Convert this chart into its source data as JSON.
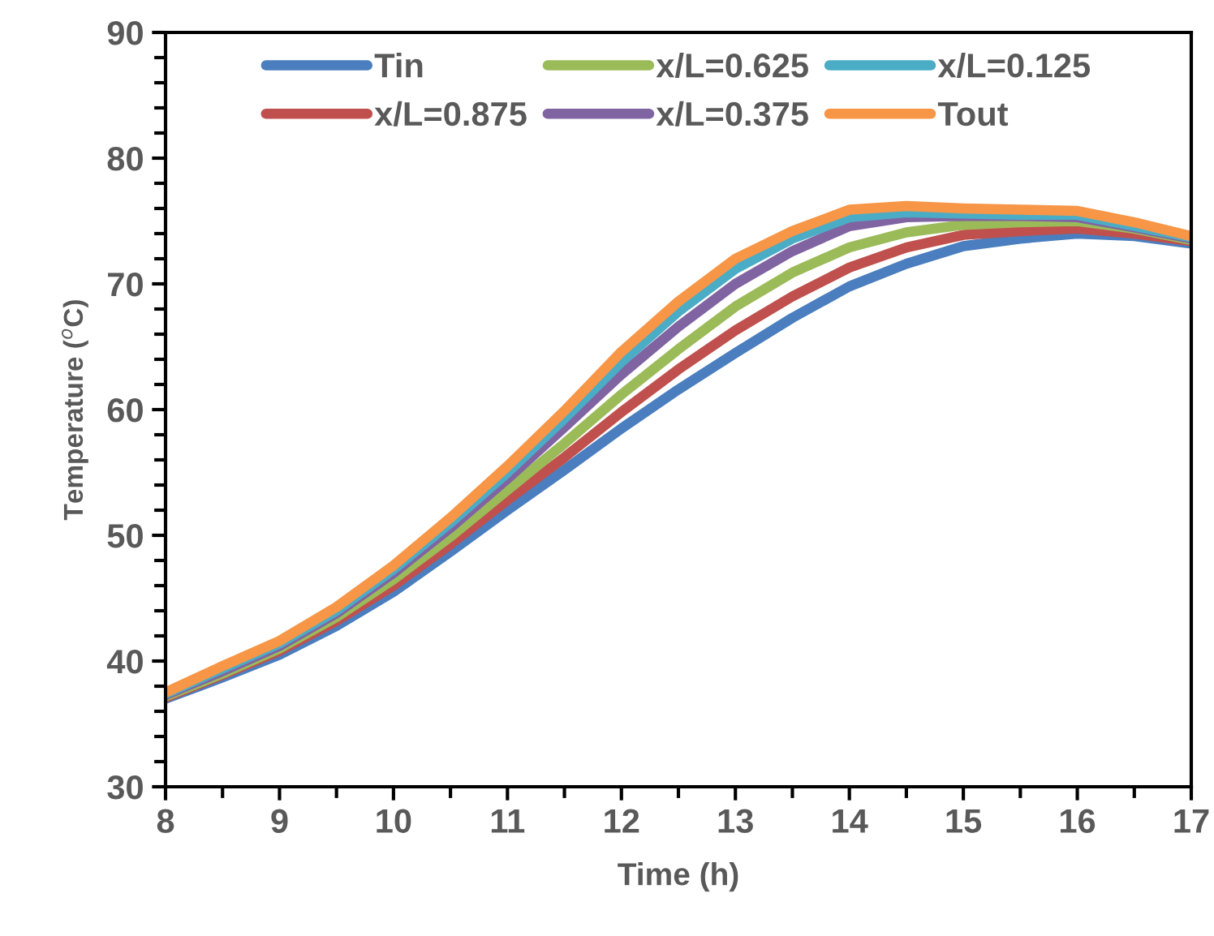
{
  "chart_data": {
    "type": "line",
    "xlabel": "Time (h)",
    "ylabel": "Temperature ($^{o}$C)",
    "x": [
      8,
      8.5,
      9,
      9.5,
      10,
      10.5,
      11,
      11.5,
      12,
      12.5,
      13,
      13.5,
      14,
      14.5,
      15,
      15.5,
      16,
      16.5,
      17
    ],
    "series": [
      {
        "name": "Tin",
        "color": "#4a7ebf",
        "values": [
          37,
          38.7,
          40.5,
          42.8,
          45.5,
          48.7,
          52,
          55.2,
          58.5,
          61.6,
          64.5,
          67.3,
          69.8,
          71.6,
          73,
          73.6,
          74,
          73.8,
          73.2
        ]
      },
      {
        "name": "x/L=0.875",
        "color": "#c0504d",
        "values": [
          37.1,
          38.9,
          40.8,
          43.2,
          46,
          49.3,
          52.8,
          56.2,
          59.8,
          63.2,
          66.3,
          69,
          71.3,
          72.9,
          73.9,
          74.2,
          74.4,
          74,
          73.4
        ]
      },
      {
        "name": "x/L=0.625",
        "color": "#9bbb59",
        "values": [
          37.2,
          39,
          41,
          43.5,
          46.5,
          49.9,
          53.6,
          57.3,
          61.2,
          64.8,
          68.2,
          70.9,
          72.9,
          74.1,
          74.7,
          74.9,
          75,
          74.4,
          73.5
        ]
      },
      {
        "name": "x/L=0.375",
        "color": "#8064a2",
        "values": [
          37.3,
          39.2,
          41.2,
          43.8,
          47,
          50.6,
          54.5,
          58.6,
          62.8,
          66.6,
          70,
          72.6,
          74.6,
          75.3,
          75.4,
          75.4,
          75.3,
          74.5,
          73.6
        ]
      },
      {
        "name": "x/L=0.125",
        "color": "#4bacc6",
        "values": [
          37.4,
          39.4,
          41.4,
          44,
          47.3,
          51,
          55,
          59.3,
          63.8,
          67.8,
          71.2,
          73.6,
          75.3,
          75.7,
          75.6,
          75.5,
          75.5,
          74.6,
          73.7
        ]
      },
      {
        "name": "Tout",
        "color": "#f79646",
        "values": [
          37.5,
          39.6,
          41.6,
          44.3,
          47.6,
          51.4,
          55.5,
          59.9,
          64.6,
          68.6,
          72,
          74.2,
          75.9,
          76.2,
          76,
          75.9,
          75.8,
          74.9,
          73.8
        ]
      }
    ],
    "xlim": [
      8,
      17
    ],
    "xticks": [
      8,
      9,
      10,
      11,
      12,
      13,
      14,
      15,
      16,
      17
    ],
    "ylim": [
      30,
      90
    ],
    "yticks": [
      30,
      40,
      50,
      60,
      70,
      80,
      90
    ],
    "grid": false,
    "legend": "top",
    "marker": "none",
    "line_style": "solid"
  }
}
